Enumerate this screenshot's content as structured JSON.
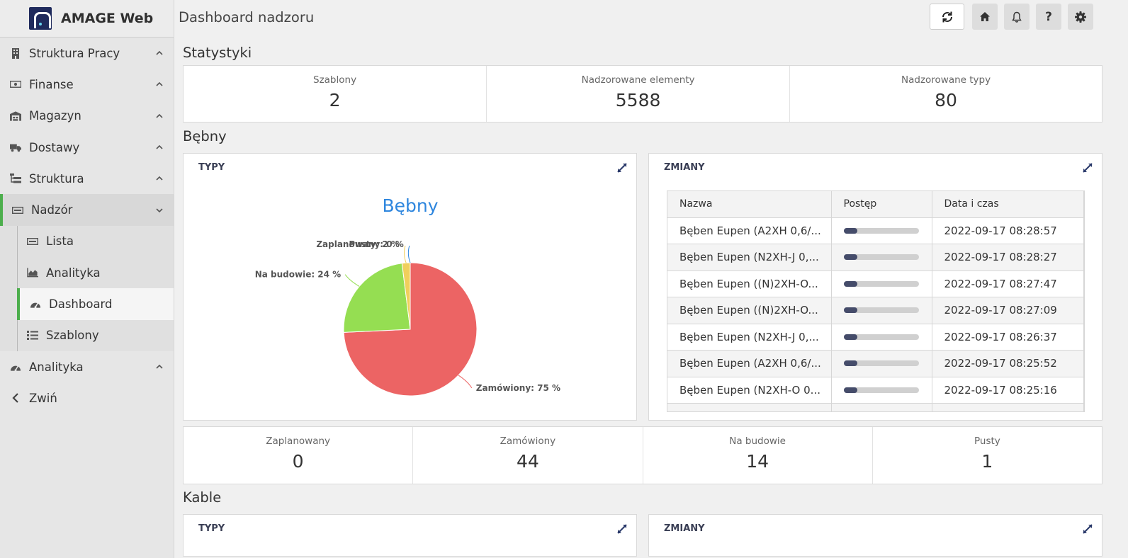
{
  "app": {
    "name": "AMAGE Web"
  },
  "sidebar": {
    "items": [
      {
        "label": "Struktura Pracy",
        "icon": "building-icon"
      },
      {
        "label": "Finanse",
        "icon": "money-icon"
      },
      {
        "label": "Magazyn",
        "icon": "warehouse-icon"
      },
      {
        "label": "Dostawy",
        "icon": "truck-icon"
      },
      {
        "label": "Struktura",
        "icon": "sitemap-icon"
      },
      {
        "label": "Nadzór",
        "icon": "card-icon"
      }
    ],
    "sub_items": [
      {
        "label": "Lista",
        "icon": "card-icon"
      },
      {
        "label": "Analityka",
        "icon": "chart-area-icon"
      },
      {
        "label": "Dashboard",
        "icon": "gauge-icon"
      },
      {
        "label": "Szablony",
        "icon": "list-icon"
      }
    ],
    "bottom_items": [
      {
        "label": "Analityka",
        "icon": "gauge-icon"
      },
      {
        "label": "Zwiń",
        "icon": "chevron-left-icon"
      }
    ]
  },
  "header": {
    "title": "Dashboard nadzoru"
  },
  "statystyki": {
    "title": "Statystyki",
    "stats": [
      {
        "label": "Szablony",
        "value": "2"
      },
      {
        "label": "Nadzorowane elementy",
        "value": "5588"
      },
      {
        "label": "Nadzorowane typy",
        "value": "80"
      }
    ]
  },
  "bebny": {
    "title": "Bębny",
    "types_panel_title": "TYPY",
    "changes_panel_title": "ZMIANY",
    "table": {
      "headers": [
        "Nazwa",
        "Postęp",
        "Data i czas"
      ],
      "rows": [
        {
          "name": "Bęben Eupen (A2XH 0,6/...",
          "progress": 0.18,
          "datetime": "2022-09-17 08:28:57"
        },
        {
          "name": "Bęben Eupen (N2XH-J 0,...",
          "progress": 0.18,
          "datetime": "2022-09-17 08:28:27"
        },
        {
          "name": "Bęben Eupen ((N)2XH-O...",
          "progress": 0.18,
          "datetime": "2022-09-17 08:27:47"
        },
        {
          "name": "Bęben Eupen ((N)2XH-O...",
          "progress": 0.18,
          "datetime": "2022-09-17 08:27:09"
        },
        {
          "name": "Bęben Eupen (N2XH-J 0,...",
          "progress": 0.18,
          "datetime": "2022-09-17 08:26:37"
        },
        {
          "name": "Bęben Eupen (A2XH 0,6/...",
          "progress": 0.18,
          "datetime": "2022-09-17 08:25:52"
        },
        {
          "name": "Bęben Eupen (N2XH-O 0...",
          "progress": 0.18,
          "datetime": "2022-09-17 08:25:16"
        }
      ]
    },
    "stats": [
      {
        "label": "Zaplanowany",
        "value": "0"
      },
      {
        "label": "Zamówiony",
        "value": "44"
      },
      {
        "label": "Na budowie",
        "value": "14"
      },
      {
        "label": "Pusty",
        "value": "1"
      }
    ]
  },
  "kable": {
    "title": "Kable",
    "types_panel_title": "TYPY",
    "changes_panel_title": "ZMIANY"
  },
  "chart_data": {
    "type": "pie",
    "title": "Bębny",
    "slices": [
      {
        "name": "Zamówiony",
        "value": 75,
        "label": "Zamówiony: 75 %",
        "color": "#ec6464"
      },
      {
        "name": "Na budowie",
        "value": 24,
        "label": "Na budowie: 24 %",
        "color": "#95de52"
      },
      {
        "name": "Pusty",
        "value": 2,
        "label": "Pusty: 2 %",
        "color": "#f0cf5c"
      },
      {
        "name": "Zaplanowany",
        "value": 0,
        "label": "Zaplanowany: 0 %",
        "color": "#2e86de"
      }
    ]
  },
  "colors": {
    "accent": "#4cae4c",
    "title_blue": "#2e86de",
    "progress": "#454c6a"
  }
}
